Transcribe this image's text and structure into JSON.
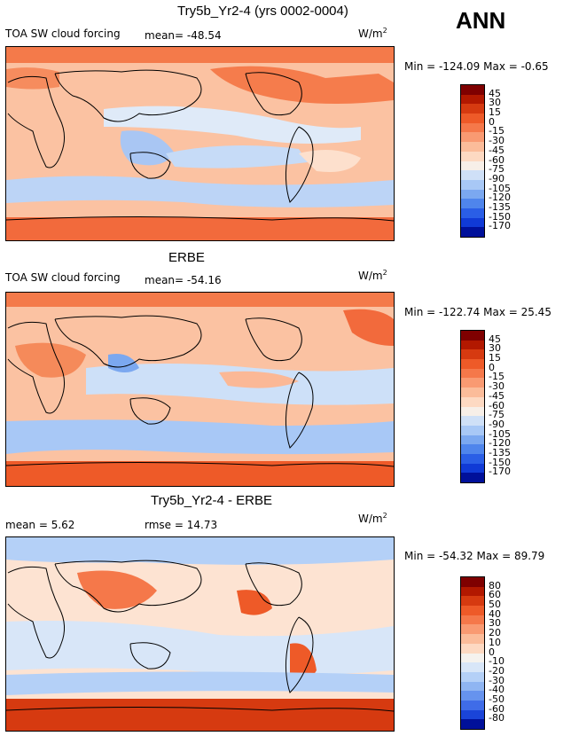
{
  "season": "ANN",
  "panels": [
    {
      "title": "Try5b_Yr2-4 (yrs 0002-0004)",
      "left_text": "TOA SW cloud forcing",
      "mean_text": "mean=  -48.54",
      "units_base": "W/m",
      "units_exp": "2",
      "minmax": "Min = -124.09 Max =   -0.65",
      "colorbar": {
        "labels": [
          "45",
          "30",
          "15",
          "0",
          "-15",
          "-30",
          "-45",
          "-60",
          "-75",
          "-90",
          "-105",
          "-120",
          "-135",
          "-150",
          "-170"
        ],
        "colors": [
          "#7f0000",
          "#b21800",
          "#d63a10",
          "#ee5a28",
          "#f5784a",
          "#f99a72",
          "#fbbc9a",
          "#fdd9c2",
          "#f7efe8",
          "#cfe0f7",
          "#a8c8f6",
          "#7ba8f0",
          "#4f85ec",
          "#2a5ee6",
          "#103ad6",
          "#00109a"
        ]
      }
    },
    {
      "title": "ERBE",
      "left_text": "TOA SW cloud forcing",
      "mean_text": "mean=  -54.16",
      "units_base": "W/m",
      "units_exp": "2",
      "minmax": "Min = -122.74 Max =  25.45",
      "colorbar": {
        "labels": [
          "45",
          "30",
          "15",
          "0",
          "-15",
          "-30",
          "-45",
          "-60",
          "-75",
          "-90",
          "-105",
          "-120",
          "-135",
          "-150",
          "-170"
        ],
        "colors": [
          "#7f0000",
          "#b21800",
          "#d63a10",
          "#ee5a28",
          "#f5784a",
          "#f99a72",
          "#fbbc9a",
          "#fdd9c2",
          "#f7efe8",
          "#cfe0f7",
          "#a8c8f6",
          "#7ba8f0",
          "#4f85ec",
          "#2a5ee6",
          "#103ad6",
          "#00109a"
        ]
      }
    },
    {
      "title": "Try5b_Yr2-4 - ERBE",
      "mean_text": "mean =    5.62",
      "rmse_text": "rmse =  14.73",
      "units_base": "W/m",
      "units_exp": "2",
      "minmax": "Min = -54.32 Max =  89.79",
      "colorbar": {
        "labels": [
          "80",
          "60",
          "50",
          "40",
          "30",
          "20",
          "10",
          "0",
          "-10",
          "-20",
          "-30",
          "-40",
          "-50",
          "-60",
          "-80"
        ],
        "colors": [
          "#7f0000",
          "#b21800",
          "#d63a10",
          "#ee5a28",
          "#f5784a",
          "#f99a72",
          "#fbbc9a",
          "#fdd9c2",
          "#f5f2ee",
          "#d8e6f8",
          "#b4d0f7",
          "#8fb5f2",
          "#6693ee",
          "#3f6ce8",
          "#1a44d8",
          "#00109a"
        ]
      }
    }
  ]
}
